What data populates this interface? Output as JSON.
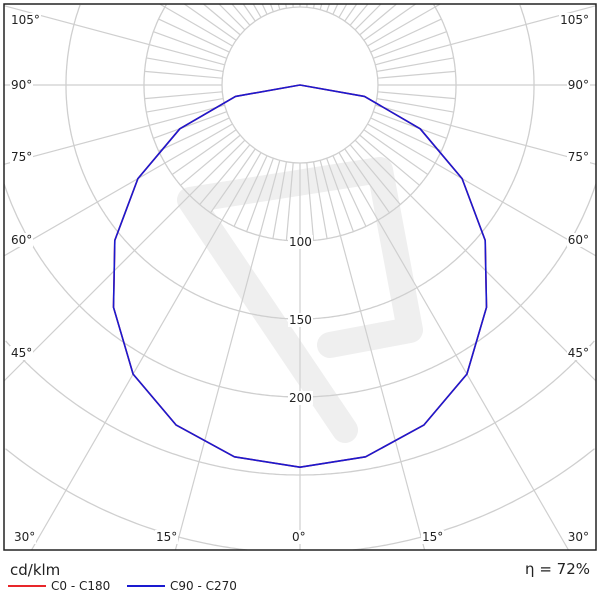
{
  "chart_data": {
    "type": "polar",
    "unit_label": "cd/klm",
    "efficiency_label": "η = 72%",
    "radial_ticks": [
      50,
      100,
      150,
      200,
      250,
      300
    ],
    "radial_tick_labels": [
      "100",
      "150",
      "200"
    ],
    "angle_labels": {
      "left": [
        "105°",
        "90°",
        "75°",
        "60°",
        "45°",
        "30°"
      ],
      "right": [
        "105°",
        "90°",
        "75°",
        "60°",
        "45°",
        "30°"
      ],
      "bottom": [
        "30°",
        "15°",
        "0°",
        "15°",
        "30°"
      ]
    },
    "grid": true,
    "series": [
      {
        "name": "C0 - C180",
        "color": "#e8262a",
        "angles": [
          0,
          10,
          20,
          30,
          40,
          50,
          60,
          70,
          80,
          90
        ],
        "values": [
          245,
          242,
          232,
          214,
          186,
          155,
          120,
          82,
          42,
          0
        ]
      },
      {
        "name": "C90 - C270",
        "color": "#1a1ad0",
        "angles": [
          0,
          10,
          20,
          30,
          40,
          50,
          60,
          70,
          80,
          90
        ],
        "values": [
          245,
          242,
          232,
          214,
          186,
          155,
          120,
          82,
          42,
          0
        ]
      }
    ]
  }
}
